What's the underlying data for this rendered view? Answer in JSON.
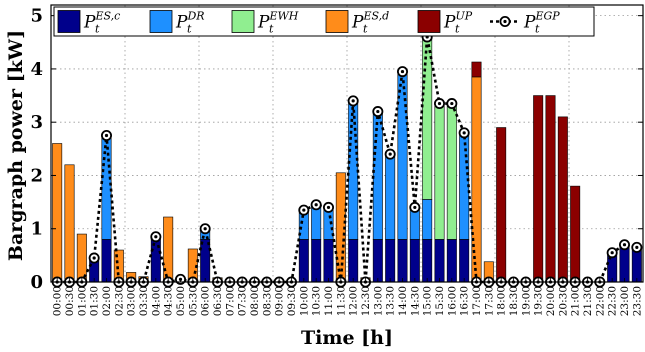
{
  "chart_data": {
    "type": "bar",
    "title": "",
    "xlabel": "Time [h]",
    "ylabel": "Bargraph power [kW]",
    "ylim": [
      0,
      5.2
    ],
    "yticks": [
      "0",
      "1",
      "2",
      "3",
      "4",
      "5"
    ],
    "grid": true,
    "legend_position": "top",
    "legend": [
      {
        "base": "P",
        "sub": "t",
        "sup": "ES,c",
        "kind": "bar",
        "color": "#00008B"
      },
      {
        "base": "P",
        "sub": "t",
        "sup": "DR",
        "kind": "bar",
        "color": "#1E90FF"
      },
      {
        "base": "P",
        "sub": "t",
        "sup": "EWH",
        "kind": "bar",
        "color": "#90EE90"
      },
      {
        "base": "P",
        "sub": "t",
        "sup": "ES,d",
        "kind": "bar",
        "color": "#FF8C1A"
      },
      {
        "base": "P",
        "sub": "t",
        "sup": "UP",
        "kind": "bar",
        "color": "#8B0000"
      },
      {
        "base": "P",
        "sub": "t",
        "sup": "EGP",
        "kind": "line-marker",
        "color": "#000000"
      }
    ],
    "categories": [
      "00:00",
      "00:30",
      "01:00",
      "01:30",
      "02:00",
      "02:30",
      "03:00",
      "03:30",
      "04:00",
      "04:30",
      "05:00",
      "05:30",
      "06:00",
      "06:30",
      "07:00",
      "07:30",
      "08:00",
      "08:30",
      "09:00",
      "09:30",
      "10:00",
      "10:30",
      "11:00",
      "11:30",
      "12:00",
      "12:30",
      "13:00",
      "13:30",
      "14:00",
      "14:30",
      "15:00",
      "15:30",
      "16:00",
      "16:30",
      "17:00",
      "17:30",
      "18:00",
      "18:30",
      "19:00",
      "19:30",
      "20:00",
      "20:30",
      "21:00",
      "21:30",
      "22:00",
      "22:30",
      "23:00",
      "23:30"
    ],
    "series": [
      {
        "name": "ES,c",
        "color": "#00008B",
        "values": [
          0,
          0,
          0,
          0.45,
          0.8,
          0,
          0,
          0,
          0.8,
          0,
          0,
          0,
          0.8,
          0,
          0,
          0,
          0,
          0,
          0,
          0,
          0.8,
          0.8,
          0.8,
          0,
          0.8,
          0,
          0.8,
          0.8,
          0.8,
          0.8,
          0.8,
          0.8,
          0.8,
          0.8,
          0,
          0,
          0,
          0,
          0,
          0,
          0,
          0,
          0,
          0,
          0,
          0.55,
          0.65,
          0.65
        ]
      },
      {
        "name": "DR",
        "color": "#1E90FF",
        "values": [
          0,
          0,
          0,
          0,
          1.95,
          0,
          0,
          0,
          0.05,
          0,
          0,
          0,
          0.2,
          0,
          0,
          0,
          0,
          0,
          0,
          0,
          0.55,
          0.65,
          0.6,
          0,
          2.6,
          0,
          2.4,
          1.6,
          3.15,
          0.6,
          0.75,
          0,
          0,
          2.0,
          0,
          0,
          0,
          0,
          0,
          0,
          0,
          0,
          0,
          0,
          0,
          0,
          0,
          0
        ]
      },
      {
        "name": "EWH",
        "color": "#90EE90",
        "values": [
          0,
          0,
          0,
          0,
          0,
          0,
          0,
          0,
          0,
          0,
          0,
          0,
          0,
          0,
          0,
          0,
          0,
          0,
          0,
          0,
          0,
          0,
          0,
          0,
          0,
          0,
          0,
          0,
          0,
          0,
          3.05,
          2.55,
          2.55,
          0,
          0,
          0,
          0,
          0,
          0,
          0,
          0,
          0,
          0,
          0,
          0,
          0,
          0,
          0
        ]
      },
      {
        "name": "ES,d",
        "color": "#FF8C1A",
        "values": [
          2.6,
          2.2,
          0.9,
          0,
          0,
          0.6,
          0.18,
          0.1,
          0,
          1.22,
          0,
          0.62,
          0,
          0.08,
          0,
          0,
          0,
          0,
          0,
          0,
          0,
          0,
          0,
          2.05,
          0,
          0.08,
          0,
          0,
          0,
          0,
          0,
          0,
          0,
          0,
          3.85,
          0.38,
          0,
          0,
          0,
          0,
          0,
          0,
          0,
          0,
          0,
          0,
          0,
          0
        ]
      },
      {
        "name": "UP",
        "color": "#8B0000",
        "values": [
          0,
          0,
          0,
          0,
          0,
          0,
          0,
          0,
          0,
          0,
          0,
          0,
          0,
          0,
          0,
          0,
          0,
          0,
          0,
          0,
          0,
          0,
          0,
          0,
          0,
          0,
          0,
          0,
          0,
          0,
          0,
          0,
          0,
          0,
          0.28,
          0,
          2.9,
          0,
          0,
          3.5,
          3.5,
          3.1,
          1.8,
          0,
          0,
          0,
          0,
          0
        ]
      },
      {
        "name": "EGP",
        "color": "#000000",
        "kind": "line",
        "values": [
          0,
          0,
          0,
          0.45,
          2.75,
          0,
          0,
          0,
          0.85,
          0,
          0.05,
          0,
          1.0,
          0,
          0,
          0,
          0,
          0,
          0,
          0,
          1.35,
          1.45,
          1.4,
          0,
          3.4,
          0,
          3.2,
          2.4,
          3.95,
          1.4,
          4.6,
          3.35,
          3.35,
          2.8,
          0,
          0,
          0,
          0,
          0,
          0,
          0,
          0,
          0,
          0,
          0,
          0.55,
          0.7,
          0.65
        ]
      }
    ]
  }
}
